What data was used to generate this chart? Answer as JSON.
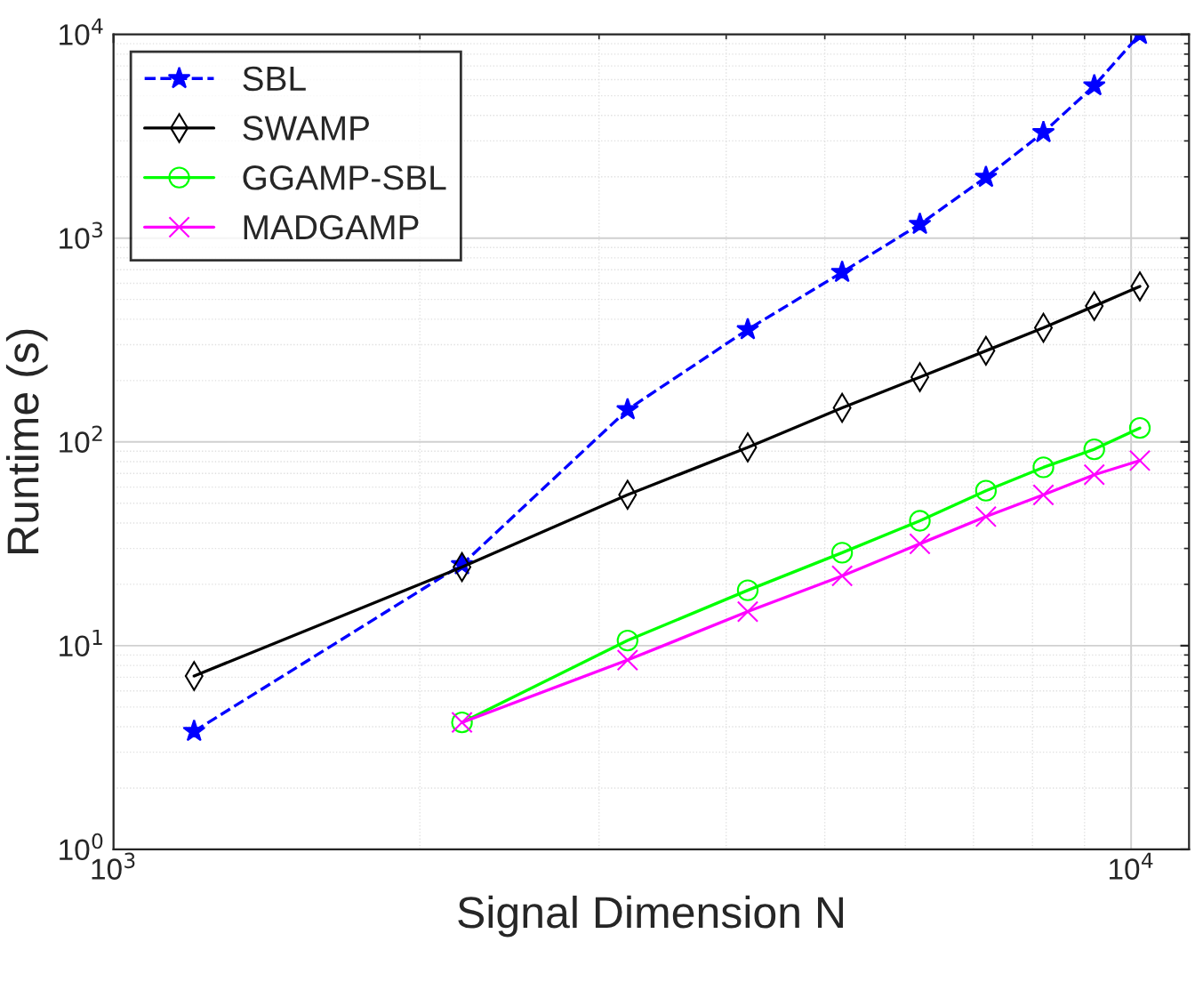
{
  "chart_data": {
    "type": "line",
    "xlabel": "Signal Dimension N",
    "ylabel": "Runtime (s)",
    "log": "xy",
    "x": [
      1200,
      2200,
      3200,
      4200,
      5200,
      6200,
      7200,
      8200,
      9200,
      10200
    ],
    "xlim": [
      1000,
      11400
    ],
    "xticks": [
      {
        "value": 1000,
        "label": "10$^{3}$"
      },
      {
        "value": 10000,
        "label": "10$^{4}$"
      }
    ],
    "ylim": [
      1,
      10000
    ],
    "yticks": [
      {
        "value": 1,
        "label": "10$^{0}$"
      },
      {
        "value": 10,
        "label": "10$^{1}$"
      },
      {
        "value": 100,
        "label": "10$^{2}$"
      },
      {
        "value": 1000,
        "label": "10$^{3}$"
      },
      {
        "value": 10000,
        "label": "10$^{4}$"
      }
    ],
    "grid": true,
    "legend": "top left",
    "series": [
      {
        "name": "SBL",
        "color": "#0000ff",
        "marker": "star",
        "line_style": "dashed",
        "values": [
          3.8,
          25,
          144,
          356,
          680,
          1170,
          1990,
          3300,
          5600,
          10000
        ]
      },
      {
        "name": "SWAMP",
        "color": "#000000",
        "marker": "diamond",
        "line_style": "solid",
        "values": [
          7.1,
          24.3,
          55,
          94,
          147,
          208,
          280,
          363,
          464,
          580
        ]
      },
      {
        "name": "GGAMP-SBL",
        "color": "#00ff00",
        "marker": "circle",
        "line_style": "solid",
        "values": [
          null,
          4.2,
          10.6,
          18.7,
          28.6,
          41,
          57.6,
          75,
          92,
          117
        ]
      },
      {
        "name": "MADGAMP",
        "color": "#ff00ff",
        "marker": "cross",
        "line_style": "solid",
        "values": [
          null,
          4.2,
          8.5,
          14.7,
          22,
          31.6,
          43,
          55,
          69,
          81
        ]
      }
    ]
  }
}
